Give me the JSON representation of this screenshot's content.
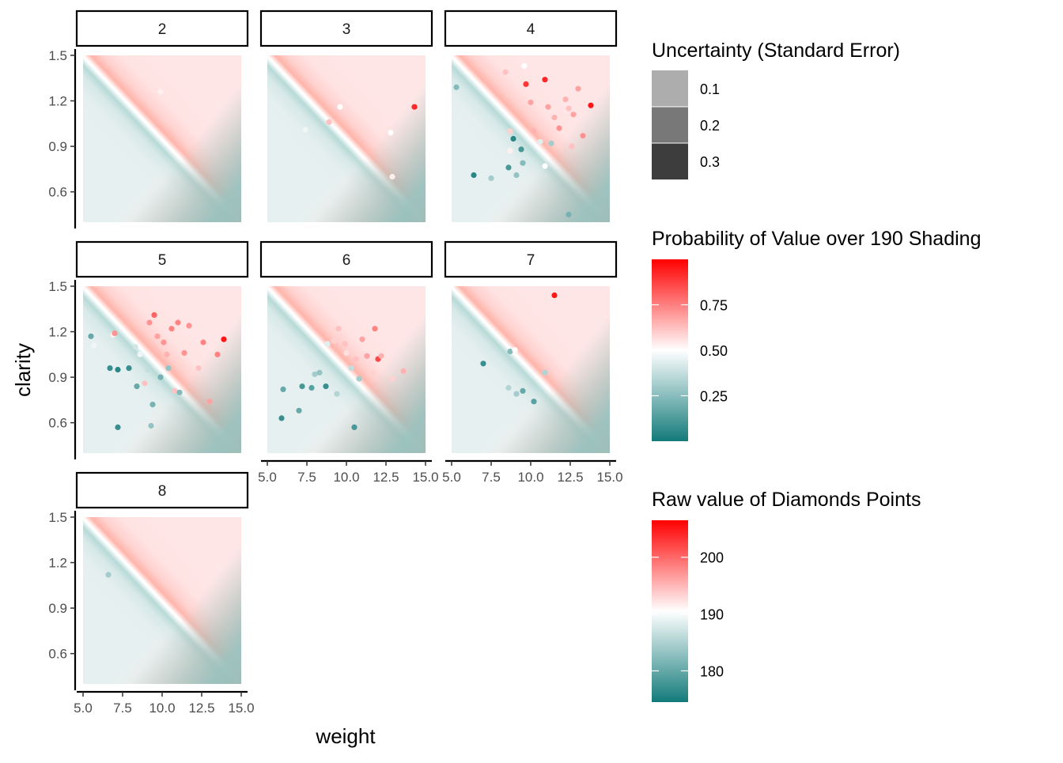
{
  "chart_data": {
    "type": "scatter",
    "layout": "faceted",
    "xlabel": "weight",
    "ylabel": "clarity",
    "xlim": [
      5,
      15
    ],
    "ylim": [
      0.4,
      1.5
    ],
    "x_ticks": [
      "5.0",
      "7.5",
      "10.0",
      "12.5",
      "15.0"
    ],
    "y_ticks": [
      "0.6",
      "0.9",
      "1.2",
      "1.5"
    ],
    "grid": false,
    "legend_position": "right",
    "background_surface": "probability of value over 190, diagonal gradient teal to red",
    "facets": [
      {
        "label": "2",
        "points": [
          {
            "x": 9.9,
            "y": 1.26,
            "v": 191
          }
        ]
      },
      {
        "label": "3",
        "points": [
          {
            "x": 7.4,
            "y": 1.01,
            "v": 189
          },
          {
            "x": 8.9,
            "y": 1.06,
            "v": 194
          },
          {
            "x": 9.6,
            "y": 1.16,
            "v": 190
          },
          {
            "x": 12.8,
            "y": 0.99,
            "v": 190
          },
          {
            "x": 12.9,
            "y": 0.7,
            "v": 191
          },
          {
            "x": 14.3,
            "y": 1.16,
            "v": 204
          }
        ]
      },
      {
        "label": "4",
        "points": [
          {
            "x": 5.3,
            "y": 1.29,
            "v": 182
          },
          {
            "x": 6.4,
            "y": 0.71,
            "v": 176
          },
          {
            "x": 7.5,
            "y": 0.69,
            "v": 184
          },
          {
            "x": 8.4,
            "y": 1.39,
            "v": 194
          },
          {
            "x": 8.6,
            "y": 0.76,
            "v": 178
          },
          {
            "x": 8.7,
            "y": 1.0,
            "v": 193
          },
          {
            "x": 8.7,
            "y": 0.87,
            "v": 191
          },
          {
            "x": 8.9,
            "y": 0.95,
            "v": 176
          },
          {
            "x": 9.1,
            "y": 0.71,
            "v": 183
          },
          {
            "x": 9.4,
            "y": 0.88,
            "v": 178
          },
          {
            "x": 9.5,
            "y": 0.79,
            "v": 182
          },
          {
            "x": 9.6,
            "y": 1.43,
            "v": 190
          },
          {
            "x": 9.7,
            "y": 1.31,
            "v": 203
          },
          {
            "x": 10.0,
            "y": 1.19,
            "v": 196
          },
          {
            "x": 10.2,
            "y": 1.0,
            "v": 195
          },
          {
            "x": 10.6,
            "y": 0.93,
            "v": 188
          },
          {
            "x": 10.9,
            "y": 1.34,
            "v": 204
          },
          {
            "x": 10.9,
            "y": 0.77,
            "v": 190
          },
          {
            "x": 11.1,
            "y": 1.16,
            "v": 196
          },
          {
            "x": 11.3,
            "y": 0.92,
            "v": 184
          },
          {
            "x": 11.5,
            "y": 1.09,
            "v": 195
          },
          {
            "x": 11.8,
            "y": 1.02,
            "v": 197
          },
          {
            "x": 12.2,
            "y": 1.21,
            "v": 195
          },
          {
            "x": 12.4,
            "y": 1.15,
            "v": 194
          },
          {
            "x": 12.6,
            "y": 0.9,
            "v": 194
          },
          {
            "x": 12.7,
            "y": 1.11,
            "v": 196
          },
          {
            "x": 12.4,
            "y": 0.45,
            "v": 181
          },
          {
            "x": 13.0,
            "y": 1.28,
            "v": 196
          },
          {
            "x": 13.3,
            "y": 0.97,
            "v": 197
          },
          {
            "x": 13.8,
            "y": 1.17,
            "v": 205
          }
        ]
      },
      {
        "label": "5",
        "points": [
          {
            "x": 5.5,
            "y": 1.17,
            "v": 180
          },
          {
            "x": 5.7,
            "y": 1.11,
            "v": 189
          },
          {
            "x": 6.7,
            "y": 0.96,
            "v": 177
          },
          {
            "x": 6.9,
            "y": 1.18,
            "v": 191
          },
          {
            "x": 7.0,
            "y": 1.19,
            "v": 197
          },
          {
            "x": 7.2,
            "y": 0.95,
            "v": 176
          },
          {
            "x": 7.2,
            "y": 0.57,
            "v": 177
          },
          {
            "x": 7.9,
            "y": 0.96,
            "v": 177
          },
          {
            "x": 8.3,
            "y": 1.1,
            "v": 187
          },
          {
            "x": 8.4,
            "y": 0.84,
            "v": 180
          },
          {
            "x": 8.6,
            "y": 1.05,
            "v": 189
          },
          {
            "x": 8.9,
            "y": 0.86,
            "v": 194
          },
          {
            "x": 9.1,
            "y": 0.95,
            "v": 186
          },
          {
            "x": 9.2,
            "y": 1.26,
            "v": 197
          },
          {
            "x": 9.3,
            "y": 0.58,
            "v": 183
          },
          {
            "x": 9.4,
            "y": 0.72,
            "v": 181
          },
          {
            "x": 9.5,
            "y": 1.31,
            "v": 200
          },
          {
            "x": 9.7,
            "y": 1.17,
            "v": 196
          },
          {
            "x": 9.9,
            "y": 0.9,
            "v": 181
          },
          {
            "x": 10.1,
            "y": 1.13,
            "v": 197
          },
          {
            "x": 10.3,
            "y": 1.05,
            "v": 195
          },
          {
            "x": 10.4,
            "y": 0.96,
            "v": 183
          },
          {
            "x": 10.6,
            "y": 1.22,
            "v": 198
          },
          {
            "x": 10.8,
            "y": 0.81,
            "v": 194
          },
          {
            "x": 11.0,
            "y": 1.26,
            "v": 198
          },
          {
            "x": 11.1,
            "y": 0.8,
            "v": 182
          },
          {
            "x": 11.4,
            "y": 1.06,
            "v": 197
          },
          {
            "x": 11.7,
            "y": 1.24,
            "v": 197
          },
          {
            "x": 12.3,
            "y": 0.96,
            "v": 194
          },
          {
            "x": 12.6,
            "y": 1.13,
            "v": 198
          },
          {
            "x": 13.0,
            "y": 0.74,
            "v": 196
          },
          {
            "x": 13.5,
            "y": 1.05,
            "v": 198
          },
          {
            "x": 13.9,
            "y": 1.15,
            "v": 205
          }
        ]
      },
      {
        "label": "6",
        "points": [
          {
            "x": 5.9,
            "y": 0.63,
            "v": 177
          },
          {
            "x": 6.0,
            "y": 0.82,
            "v": 180
          },
          {
            "x": 7.0,
            "y": 0.68,
            "v": 180
          },
          {
            "x": 7.2,
            "y": 0.84,
            "v": 178
          },
          {
            "x": 7.8,
            "y": 0.83,
            "v": 179
          },
          {
            "x": 8.0,
            "y": 0.92,
            "v": 184
          },
          {
            "x": 8.3,
            "y": 0.93,
            "v": 183
          },
          {
            "x": 8.7,
            "y": 0.84,
            "v": 177
          },
          {
            "x": 8.8,
            "y": 1.12,
            "v": 188
          },
          {
            "x": 9.2,
            "y": 1.14,
            "v": 193
          },
          {
            "x": 9.4,
            "y": 0.79,
            "v": 185
          },
          {
            "x": 9.5,
            "y": 1.22,
            "v": 194
          },
          {
            "x": 9.9,
            "y": 1.12,
            "v": 194
          },
          {
            "x": 10.0,
            "y": 1.06,
            "v": 192
          },
          {
            "x": 10.3,
            "y": 0.96,
            "v": 186
          },
          {
            "x": 10.5,
            "y": 0.57,
            "v": 178
          },
          {
            "x": 10.6,
            "y": 1.02,
            "v": 194
          },
          {
            "x": 10.8,
            "y": 0.89,
            "v": 184
          },
          {
            "x": 11.0,
            "y": 1.15,
            "v": 196
          },
          {
            "x": 11.3,
            "y": 1.04,
            "v": 196
          },
          {
            "x": 11.7,
            "y": 0.93,
            "v": 193
          },
          {
            "x": 11.8,
            "y": 1.22,
            "v": 198
          },
          {
            "x": 12.0,
            "y": 1.02,
            "v": 202
          },
          {
            "x": 12.2,
            "y": 1.04,
            "v": 195
          },
          {
            "x": 12.9,
            "y": 0.89,
            "v": 193
          },
          {
            "x": 13.6,
            "y": 0.94,
            "v": 195
          }
        ]
      },
      {
        "label": "7",
        "points": [
          {
            "x": 7.0,
            "y": 0.99,
            "v": 177
          },
          {
            "x": 8.6,
            "y": 0.83,
            "v": 185
          },
          {
            "x": 8.7,
            "y": 1.07,
            "v": 182
          },
          {
            "x": 9.0,
            "y": 1.08,
            "v": 190
          },
          {
            "x": 9.1,
            "y": 0.79,
            "v": 184
          },
          {
            "x": 9.5,
            "y": 0.81,
            "v": 180
          },
          {
            "x": 10.2,
            "y": 0.74,
            "v": 179
          },
          {
            "x": 10.9,
            "y": 0.93,
            "v": 185
          },
          {
            "x": 11.5,
            "y": 1.44,
            "v": 205
          }
        ]
      },
      {
        "label": "8",
        "points": [
          {
            "x": 6.6,
            "y": 1.12,
            "v": 184
          }
        ]
      }
    ],
    "legends": [
      {
        "title": "Uncertainty (Standard Error)",
        "type": "alpha",
        "entries": [
          "0.1",
          "0.2",
          "0.3"
        ],
        "colors": [
          "#adadad",
          "#787878",
          "#3d3d3d"
        ]
      },
      {
        "title": "Probability of Value over 190 Shading",
        "type": "colorbar",
        "range": [
          0,
          1
        ],
        "ticks": [
          0.25,
          0.5,
          0.75
        ],
        "tick_labels": [
          "0.25",
          "0.50",
          "0.75"
        ]
      },
      {
        "title": "Raw value of Diamonds Points",
        "type": "colorbar",
        "range": [
          174.5,
          206.5
        ],
        "ticks": [
          180,
          190,
          200
        ],
        "tick_labels": [
          "180",
          "190",
          "200"
        ]
      }
    ],
    "colors": {
      "low": "#137a7a",
      "mid": "#ffffff",
      "high": "#ff0000"
    }
  }
}
